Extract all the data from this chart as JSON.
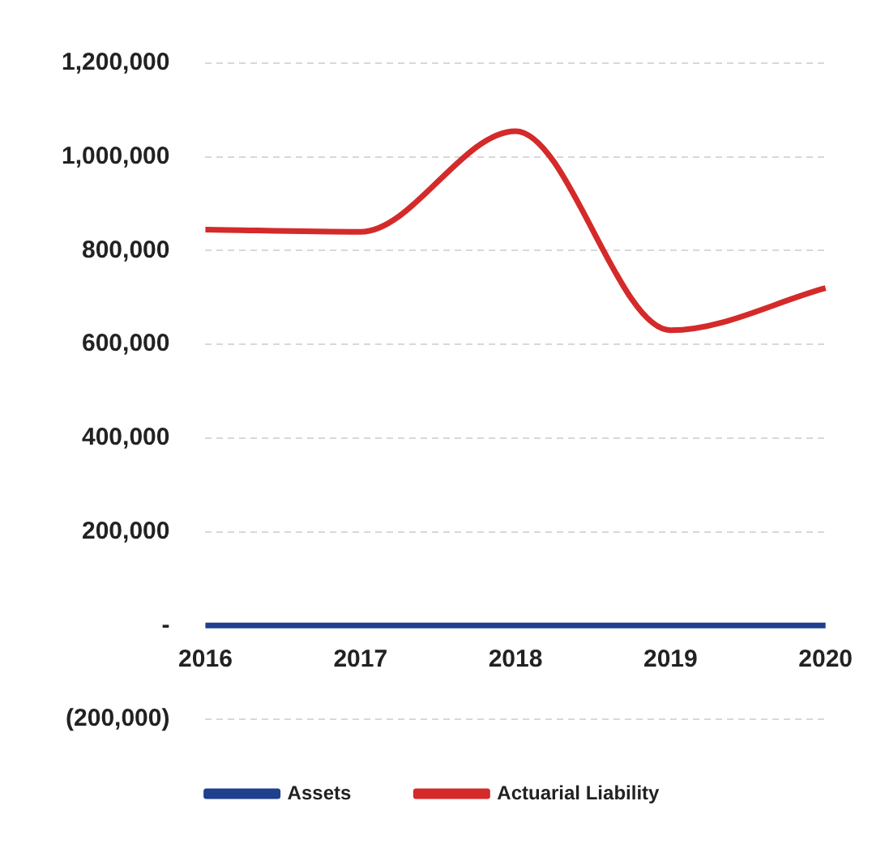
{
  "chart_data": {
    "type": "line",
    "categories": [
      "2016",
      "2017",
      "2018",
      "2019",
      "2020"
    ],
    "series": [
      {
        "name": "Assets",
        "color": "#1f3f8f",
        "values": [
          0,
          0,
          0,
          0,
          0
        ]
      },
      {
        "name": "Actuarial Liability",
        "color": "#d42a2a",
        "values": [
          845000,
          840000,
          1055000,
          630000,
          720000
        ]
      }
    ],
    "ylim": [
      -200000,
      1200000
    ],
    "yticks": [
      {
        "value": -200000,
        "label": "(200,000)"
      },
      {
        "value": 0,
        "label": "-"
      },
      {
        "value": 200000,
        "label": "200,000"
      },
      {
        "value": 400000,
        "label": "400,000"
      },
      {
        "value": 600000,
        "label": "600,000"
      },
      {
        "value": 800000,
        "label": "800,000"
      },
      {
        "value": 1000000,
        "label": "1,000,000"
      },
      {
        "value": 1200000,
        "label": "1,200,000"
      }
    ],
    "grid": "y",
    "legend": "bottom",
    "marker": "none",
    "line_style": "solid"
  }
}
